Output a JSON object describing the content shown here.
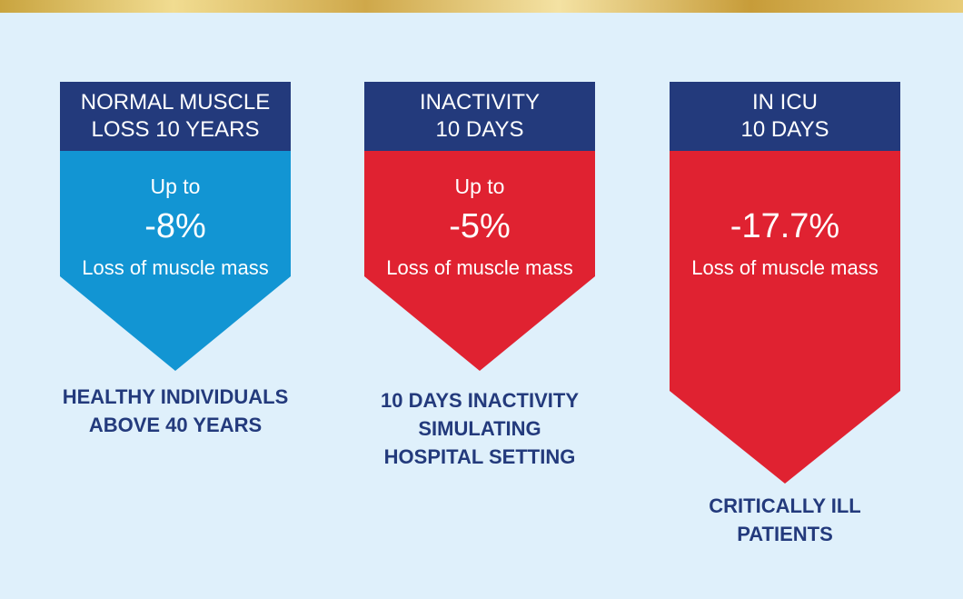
{
  "colors": {
    "header": "#233a7c",
    "blue_arrow": "#1295d3",
    "red_arrow": "#e02231",
    "caption_text": "#233a7c",
    "background": "#dff0fb"
  },
  "columns": [
    {
      "header_line1": "NORMAL MUSCLE",
      "header_line2": "LOSS 10 YEARS",
      "prefix": "Up to",
      "value": "-8%",
      "label": "Loss of muscle mass",
      "caption_line1": "HEALTHY INDIVIDUALS",
      "caption_line2": "ABOVE 40 YEARS"
    },
    {
      "header_line1": "INACTIVITY",
      "header_line2": "10 DAYS",
      "prefix": "Up to",
      "value": "-5%",
      "label": "Loss of muscle mass",
      "caption_line1": "10 DAYS INACTIVITY",
      "caption_line2": "SIMULATING",
      "caption_line3": "HOSPITAL SETTING"
    },
    {
      "header_line1": "IN ICU",
      "header_line2": "10 DAYS",
      "value": "-17.7%",
      "label": "Loss of muscle mass",
      "caption_line1": "CRITICALLY ILL",
      "caption_line2": "PATIENTS"
    }
  ]
}
